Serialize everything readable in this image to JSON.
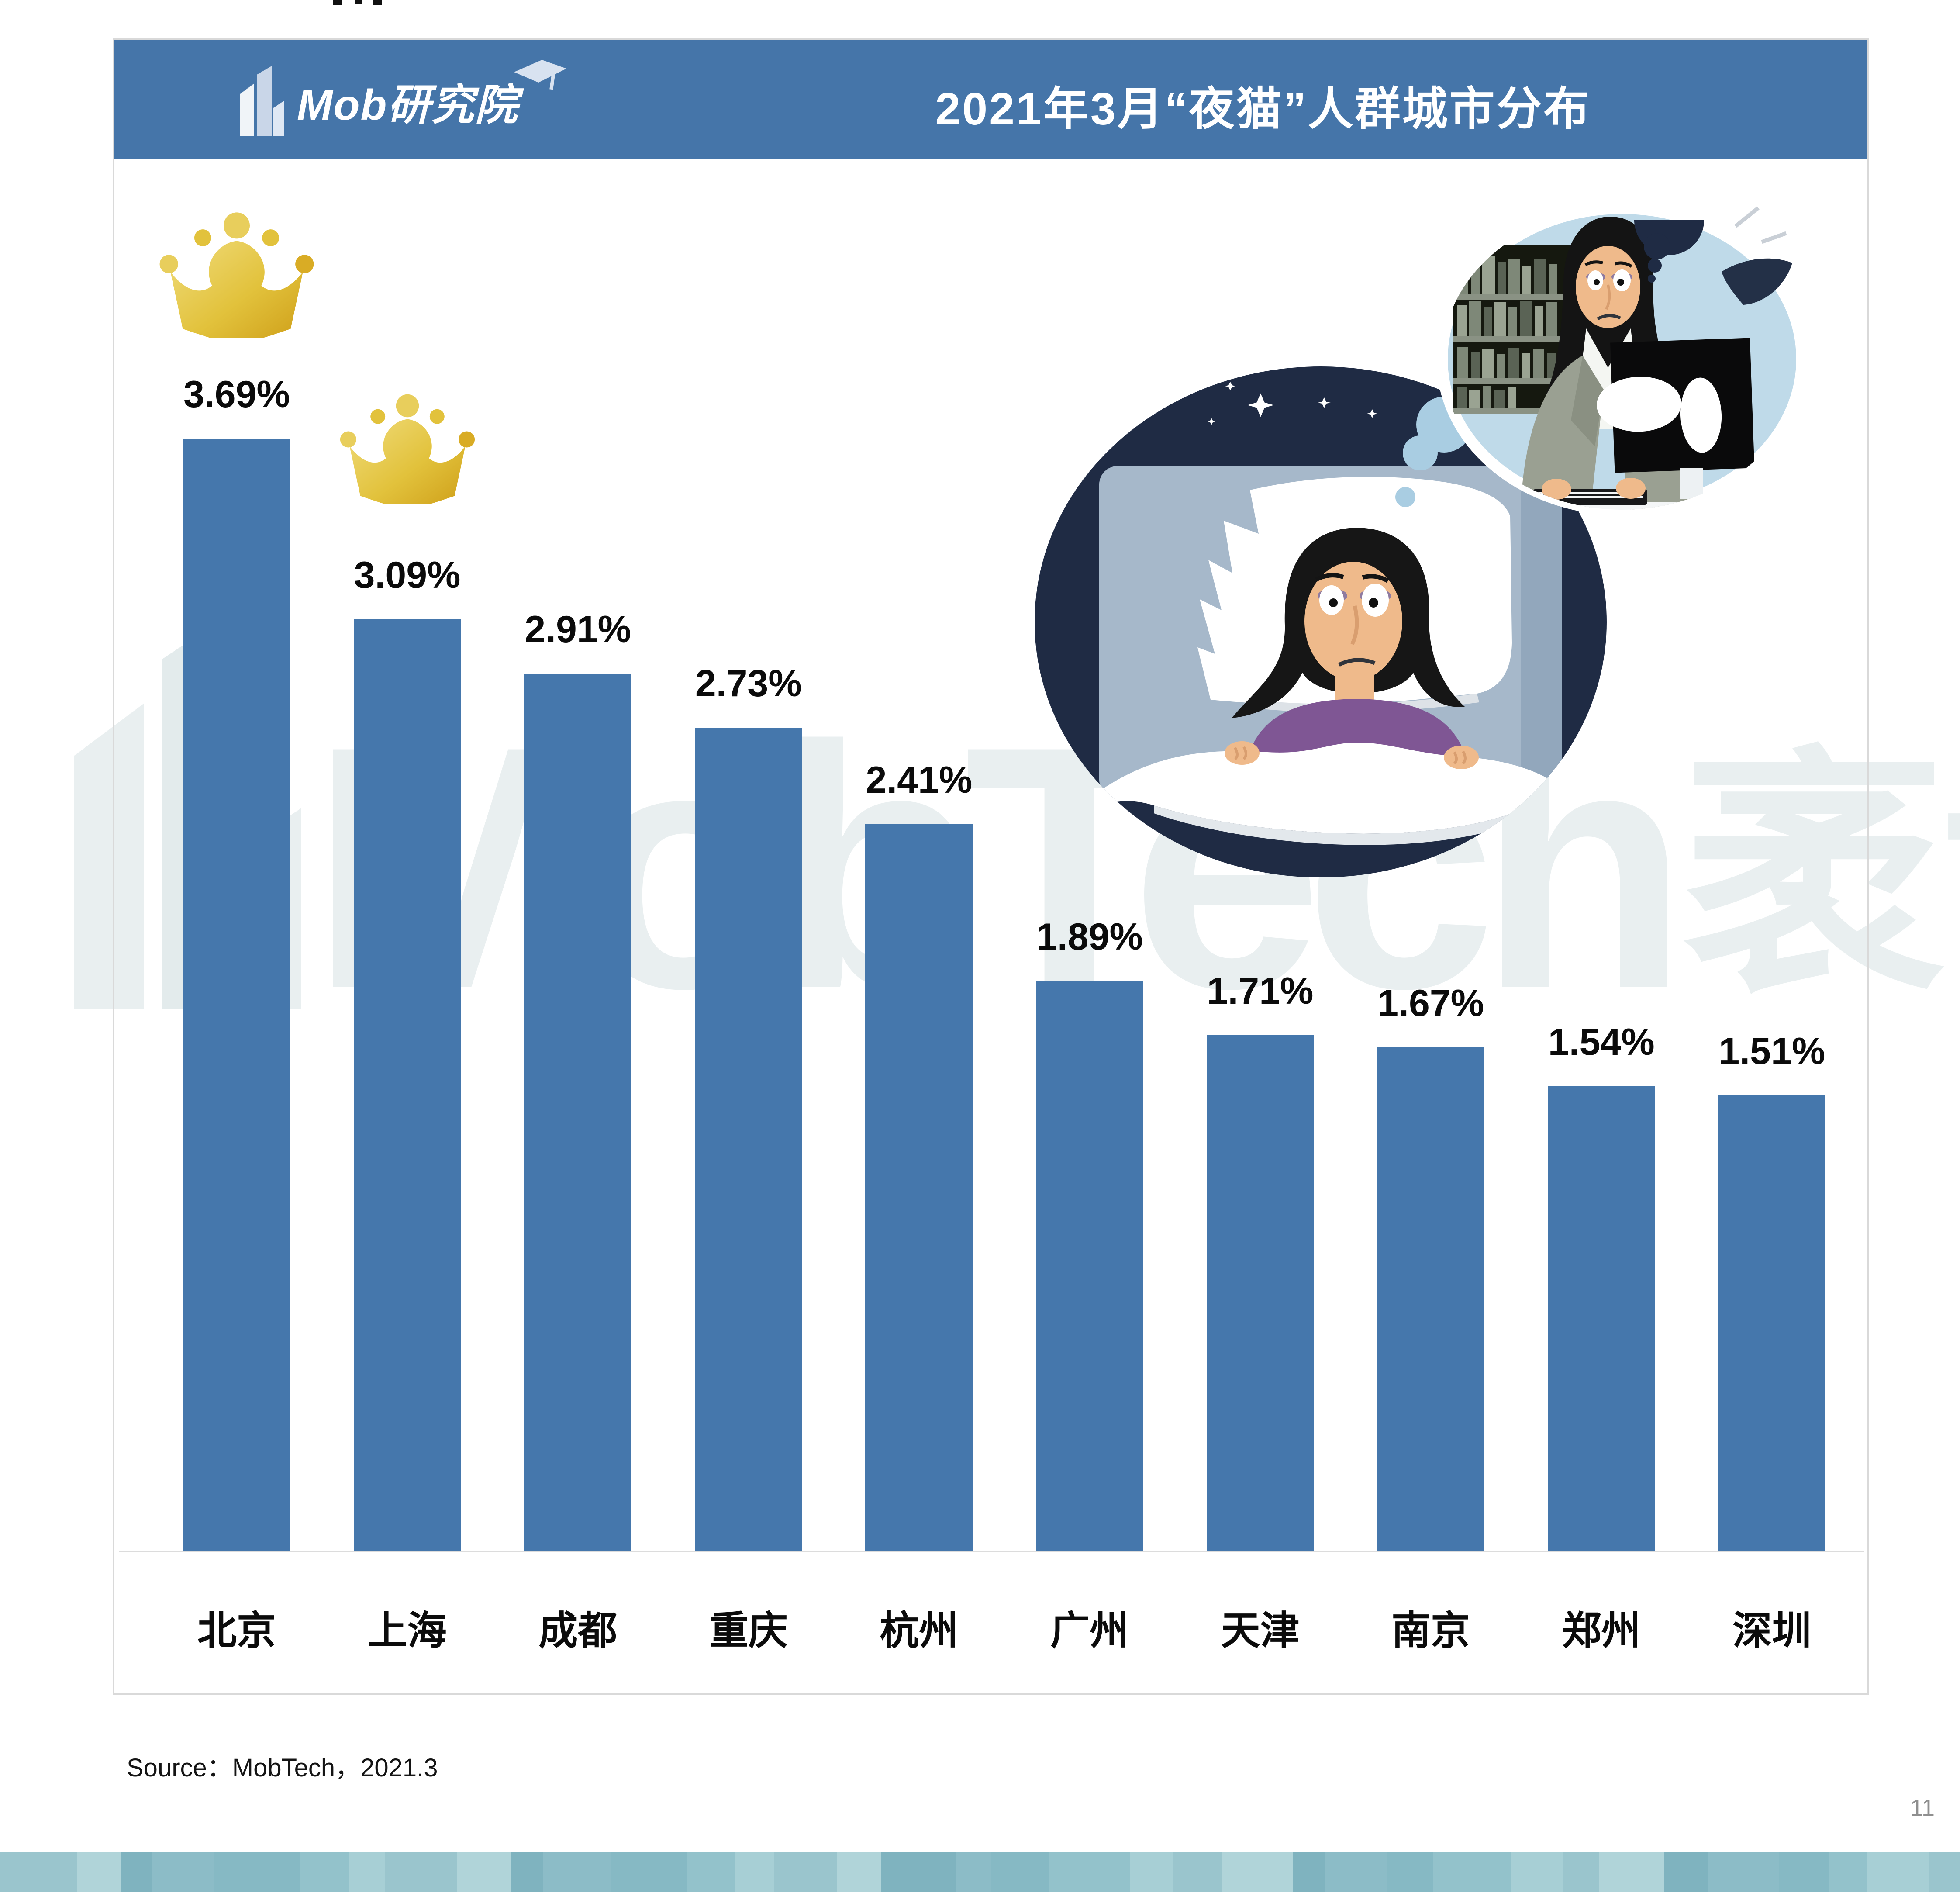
{
  "header": {
    "brand": "Mob研究院",
    "brand_icon": "building-icon",
    "title": "2021年3月“夜猫”人群城市分布",
    "bg_color": "#4575A9",
    "text_color": "#FFFFFF"
  },
  "chart_data": {
    "type": "bar",
    "title": "2021年3月“夜猫”人群城市分布",
    "categories": [
      "北京",
      "上海",
      "成都",
      "重庆",
      "杭州",
      "广州",
      "天津",
      "南京",
      "郑州",
      "深圳"
    ],
    "values": [
      3.69,
      3.09,
      2.91,
      2.73,
      2.41,
      1.89,
      1.71,
      1.67,
      1.54,
      1.51
    ],
    "value_labels": [
      "3.69%",
      "3.09%",
      "2.91%",
      "2.73%",
      "2.41%",
      "1.89%",
      "1.71%",
      "1.67%",
      "1.54%",
      "1.51%"
    ],
    "unit": "%",
    "bar_color": "#4577AC",
    "crowned_categories": [
      "北京",
      "上海"
    ],
    "crown_color": "#D9AC25",
    "xlabel": "",
    "ylabel": "",
    "ylim": [
      0,
      4
    ],
    "grid": false,
    "legend": null
  },
  "watermark": {
    "latin": "MobTech",
    "cjk": "袤博",
    "color": "#E9EFF0"
  },
  "illustration": {
    "name": "insomnia-illustration",
    "description": "woman lying awake in bed at night with a thought bubble of herself working late at a computer",
    "night_color": "#1F2B44",
    "bubble_color": "#BFDAE9"
  },
  "footer": {
    "source": "Source：MobTech，2021.3",
    "page_number": "11",
    "band_palette": [
      "#9AC5CD",
      "#8CBCC7",
      "#A7CFD5",
      "#7FB3BF",
      "#93C2CB",
      "#B0D4D9",
      "#86B9C4"
    ]
  }
}
